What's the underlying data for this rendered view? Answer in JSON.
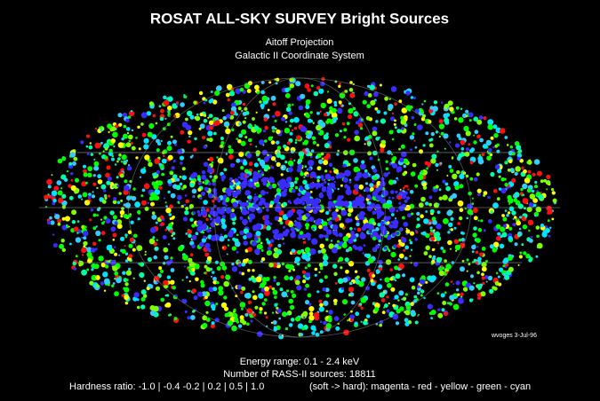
{
  "header": {
    "title": "ROSAT ALL-SKY SURVEY Bright Sources",
    "projection": "Aitoff Projection",
    "coordinates": "Galactic II Coordinate System"
  },
  "credit": "wvoges 3-Jul-96",
  "footer": {
    "energy": "Energy range: 0.1 - 2.4 keV",
    "count": "Number of RASS-II sources: 18811",
    "hardness": "Hardness ratio: -1.0 | -0.4 -0.2 | 0.2 | 0.5 | 1.0",
    "scale": "(soft -> hard): magenta - red - yellow - green - cyan"
  }
}
